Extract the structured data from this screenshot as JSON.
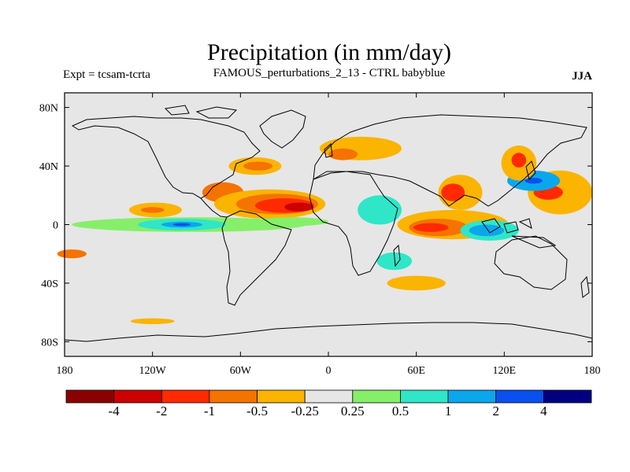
{
  "chart_data": {
    "type": "heatmap",
    "title": "Precipitation (in mm/day)",
    "left_label": "Expt = tcsam-tcrta",
    "center_label": "FAMOUS_perturbations_2_13 - CTRL babyblue",
    "right_label": "JJA",
    "lon_range": [
      -180,
      180
    ],
    "lat_range": [
      -90,
      90
    ],
    "x_ticks": [
      {
        "value": -180,
        "label": "180"
      },
      {
        "value": -120,
        "label": "120W"
      },
      {
        "value": -60,
        "label": "60W"
      },
      {
        "value": 0,
        "label": "0"
      },
      {
        "value": 60,
        "label": "60E"
      },
      {
        "value": 120,
        "label": "120E"
      },
      {
        "value": 180,
        "label": "180"
      }
    ],
    "y_ticks": [
      {
        "value": 80,
        "label": "80N"
      },
      {
        "value": 40,
        "label": "40N"
      },
      {
        "value": 0,
        "label": "0"
      },
      {
        "value": -40,
        "label": "40S"
      },
      {
        "value": -80,
        "label": "80S"
      }
    ],
    "colorbar": {
      "colors": [
        "#8b0000",
        "#cc0000",
        "#ff2a00",
        "#f57300",
        "#fbb400",
        "#e6e6e6",
        "#86ef6a",
        "#2fe6c8",
        "#0aa7ec",
        "#0a4ff0",
        "#000080"
      ],
      "labels": [
        "-4",
        "-2",
        "-1",
        "-0.5",
        "-0.25",
        "0.25",
        "0.5",
        "1",
        "2",
        "4"
      ]
    },
    "anomaly_regions": [
      {
        "lon": -72,
        "lat": 22,
        "rx": 14,
        "ry": 7,
        "level": "-0.5"
      },
      {
        "lon": -40,
        "lat": 14,
        "rx": 38,
        "ry": 10,
        "level": "-0.25"
      },
      {
        "lon": -35,
        "lat": 14,
        "rx": 28,
        "ry": 7,
        "level": "-0.5"
      },
      {
        "lon": -30,
        "lat": 13,
        "rx": 20,
        "ry": 5,
        "level": "-1"
      },
      {
        "lon": -20,
        "lat": 12,
        "rx": 10,
        "ry": 3,
        "level": "-2"
      },
      {
        "lon": -50,
        "lat": 40,
        "rx": 18,
        "ry": 6,
        "level": "-0.25"
      },
      {
        "lon": -48,
        "lat": 40,
        "rx": 10,
        "ry": 3,
        "level": "-0.5"
      },
      {
        "lon": -118,
        "lat": 10,
        "rx": 18,
        "ry": 5,
        "level": "-0.25"
      },
      {
        "lon": -120,
        "lat": 10,
        "rx": 8,
        "ry": 2,
        "level": "-0.5"
      },
      {
        "lon": -95,
        "lat": 0,
        "rx": 80,
        "ry": 5,
        "level": "0.25"
      },
      {
        "lon": -100,
        "lat": 0,
        "rx": 30,
        "ry": 4,
        "level": "0.5"
      },
      {
        "lon": -100,
        "lat": 0,
        "rx": 14,
        "ry": 2,
        "level": "1"
      },
      {
        "lon": -100,
        "lat": 0,
        "rx": 6,
        "ry": 1,
        "level": "2"
      },
      {
        "lon": -25,
        "lat": 2,
        "rx": 25,
        "ry": 3,
        "level": "0.25"
      },
      {
        "lon": 35,
        "lat": 10,
        "rx": 15,
        "ry": 10,
        "level": "0.5"
      },
      {
        "lon": 22,
        "lat": 52,
        "rx": 28,
        "ry": 8,
        "level": "-0.25"
      },
      {
        "lon": 10,
        "lat": 48,
        "rx": 10,
        "ry": 4,
        "level": "-0.5"
      },
      {
        "lon": 85,
        "lat": 0,
        "rx": 38,
        "ry": 10,
        "level": "-0.25"
      },
      {
        "lon": 75,
        "lat": -2,
        "rx": 20,
        "ry": 6,
        "level": "-0.5"
      },
      {
        "lon": 70,
        "lat": -2,
        "rx": 12,
        "ry": 3,
        "level": "-1"
      },
      {
        "lon": 110,
        "lat": -4,
        "rx": 20,
        "ry": 7,
        "level": "0.5"
      },
      {
        "lon": 108,
        "lat": -4,
        "rx": 12,
        "ry": 4,
        "level": "1"
      },
      {
        "lon": 90,
        "lat": 22,
        "rx": 15,
        "ry": 12,
        "level": "-0.25"
      },
      {
        "lon": 85,
        "lat": 22,
        "rx": 8,
        "ry": 6,
        "level": "-1"
      },
      {
        "lon": 158,
        "lat": 22,
        "rx": 22,
        "ry": 15,
        "level": "-0.25"
      },
      {
        "lon": 150,
        "lat": 22,
        "rx": 10,
        "ry": 5,
        "level": "-1"
      },
      {
        "lon": 140,
        "lat": 30,
        "rx": 18,
        "ry": 7,
        "level": "1"
      },
      {
        "lon": 140,
        "lat": 30,
        "rx": 6,
        "ry": 2,
        "level": "2"
      },
      {
        "lon": 130,
        "lat": 42,
        "rx": 12,
        "ry": 12,
        "level": "-0.25"
      },
      {
        "lon": 130,
        "lat": 44,
        "rx": 5,
        "ry": 5,
        "level": "-1"
      },
      {
        "lon": 45,
        "lat": -25,
        "rx": 12,
        "ry": 6,
        "level": "0.5"
      },
      {
        "lon": 60,
        "lat": -40,
        "rx": 20,
        "ry": 5,
        "level": "-0.25"
      },
      {
        "lon": -175,
        "lat": -20,
        "rx": 10,
        "ry": 3,
        "level": "-0.5"
      },
      {
        "lon": -120,
        "lat": -66,
        "rx": 15,
        "ry": 2,
        "level": "-0.25"
      }
    ]
  }
}
